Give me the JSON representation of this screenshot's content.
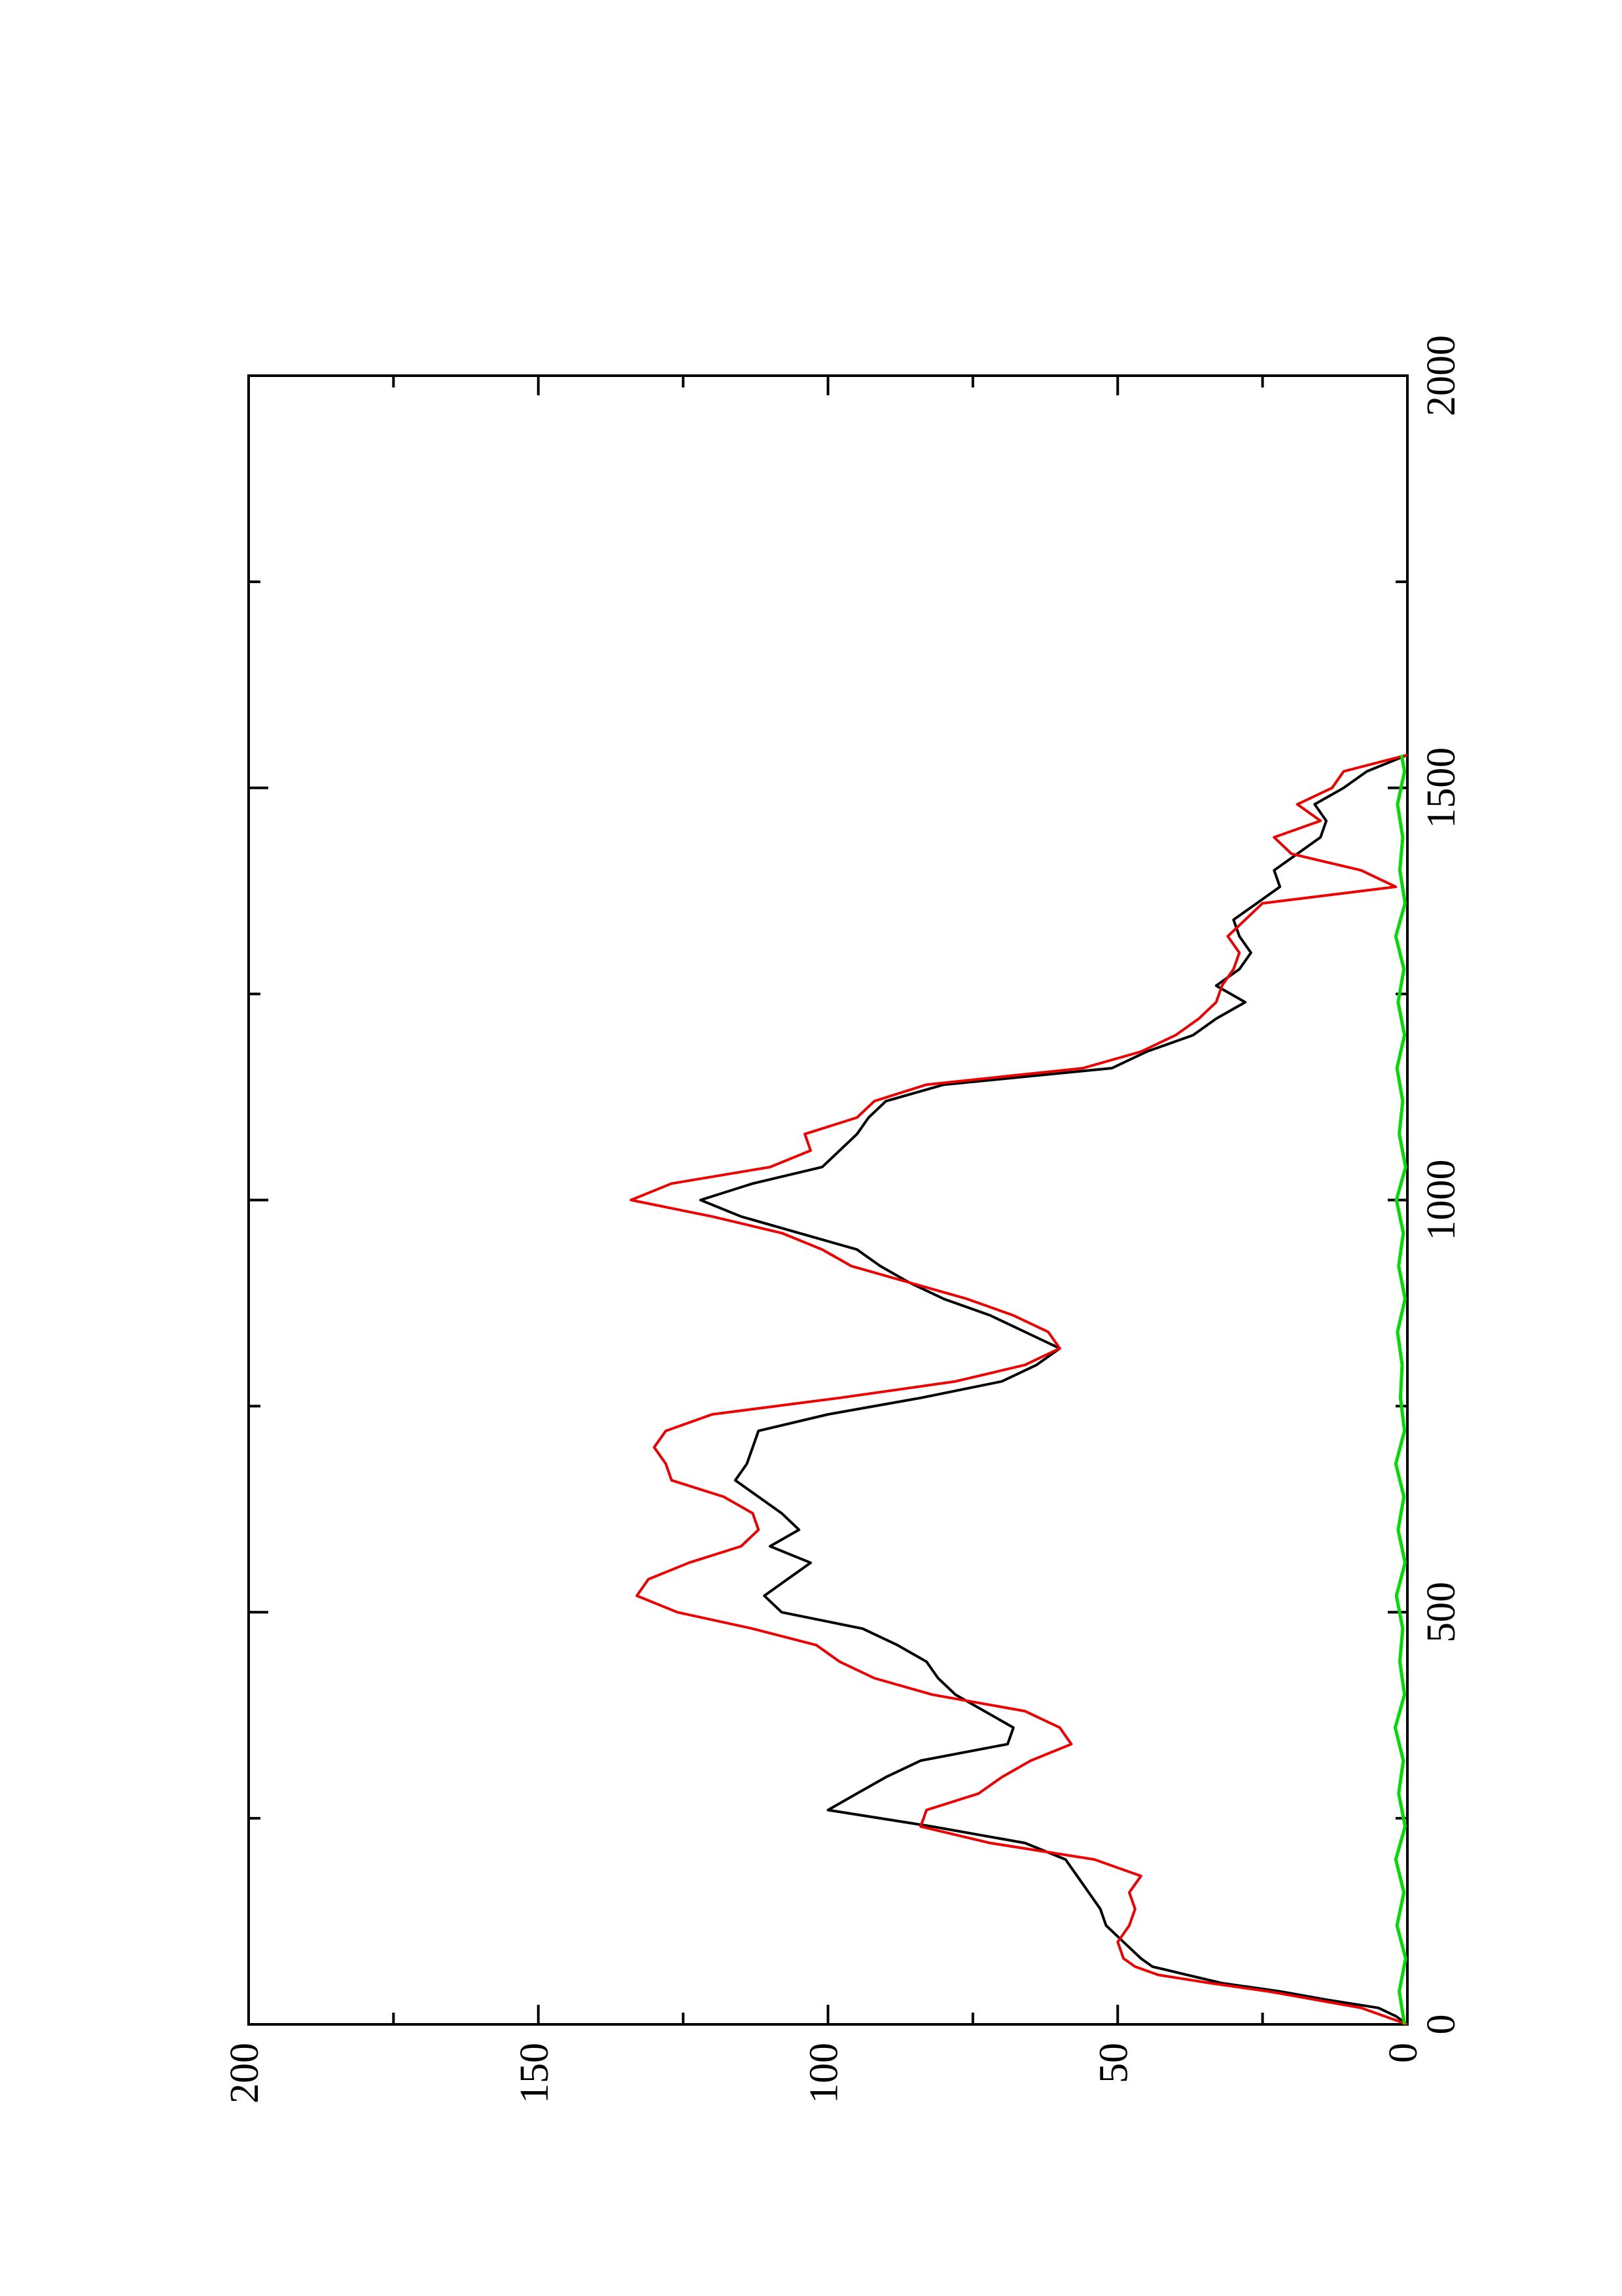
{
  "chart_data": {
    "type": "line",
    "orientation": "rotated-90-counterclockwise",
    "title": "",
    "xlabel": "",
    "ylabel": "",
    "xlim": [
      0,
      2000
    ],
    "ylim": [
      0,
      200
    ],
    "x_ticks": [
      0,
      500,
      1000,
      1500,
      2000
    ],
    "x_tick_labels": [
      "0",
      "500",
      "1000",
      "1500",
      "2000"
    ],
    "x_minor_ticks": [
      250,
      750,
      1250,
      1750
    ],
    "y_ticks": [
      0,
      50,
      100,
      150,
      200
    ],
    "y_tick_labels": [
      "0",
      "50",
      "100",
      "150",
      "200"
    ],
    "y_minor_ticks": [
      25,
      75,
      125,
      175
    ],
    "grid": false,
    "legend": "none",
    "series": [
      {
        "color": "#000000",
        "x": [
          0,
          10,
          20,
          30,
          40,
          50,
          60,
          70,
          80,
          100,
          120,
          140,
          160,
          180,
          200,
          220,
          240,
          260,
          280,
          300,
          320,
          340,
          360,
          380,
          400,
          420,
          440,
          460,
          480,
          500,
          520,
          540,
          560,
          580,
          600,
          620,
          640,
          660,
          680,
          700,
          720,
          740,
          760,
          780,
          800,
          820,
          840,
          860,
          880,
          900,
          920,
          940,
          960,
          980,
          1000,
          1020,
          1040,
          1060,
          1080,
          1100,
          1120,
          1140,
          1160,
          1180,
          1200,
          1220,
          1240,
          1260,
          1280,
          1300,
          1320,
          1340,
          1360,
          1380,
          1400,
          1420,
          1440,
          1460,
          1480,
          1500,
          1520,
          1540
        ],
        "y": [
          0,
          2,
          5,
          14,
          22,
          32,
          38,
          44,
          46,
          49,
          52,
          53,
          55,
          57,
          59,
          66,
          82,
          100,
          95,
          90,
          84,
          69,
          68,
          73,
          78,
          81,
          83,
          88,
          94,
          108,
          111,
          107,
          103,
          110,
          105,
          108,
          112,
          116,
          114,
          113,
          112,
          100,
          84,
          70,
          64,
          60,
          66,
          72,
          80,
          86,
          91,
          95,
          105,
          115,
          122,
          113,
          101,
          98,
          95,
          93,
          90,
          80,
          51,
          45,
          37,
          33,
          28,
          33,
          29,
          27,
          29,
          30,
          26,
          22,
          23,
          19,
          15,
          14,
          16,
          11,
          7,
          0
        ]
      },
      {
        "color": "#ee0000",
        "x": [
          0,
          10,
          20,
          30,
          40,
          50,
          60,
          70,
          80,
          100,
          120,
          140,
          160,
          180,
          200,
          220,
          240,
          260,
          280,
          300,
          320,
          340,
          360,
          380,
          400,
          420,
          440,
          460,
          480,
          500,
          520,
          540,
          560,
          580,
          600,
          620,
          640,
          660,
          680,
          700,
          720,
          740,
          760,
          780,
          800,
          820,
          840,
          860,
          880,
          900,
          920,
          940,
          960,
          980,
          1000,
          1020,
          1040,
          1060,
          1080,
          1100,
          1120,
          1140,
          1160,
          1180,
          1200,
          1220,
          1240,
          1260,
          1280,
          1300,
          1320,
          1340,
          1360,
          1380,
          1400,
          1420,
          1440,
          1460,
          1480,
          1500,
          1520,
          1540
        ],
        "y": [
          0,
          4,
          8,
          16,
          24,
          34,
          43,
          47,
          49,
          50,
          48,
          47,
          48,
          46,
          54,
          72,
          84,
          83,
          74,
          70,
          65,
          58,
          60,
          66,
          82,
          92,
          98,
          102,
          113,
          126,
          133,
          131,
          124,
          115,
          112,
          113,
          118,
          127,
          128,
          130,
          128,
          120,
          98,
          78,
          66,
          60,
          62,
          68,
          76,
          86,
          96,
          101,
          108,
          120,
          134,
          127,
          110,
          103,
          104,
          95,
          92,
          83,
          56,
          46,
          40,
          36,
          33,
          32,
          30,
          29,
          31,
          28,
          25,
          2,
          8,
          20,
          23,
          15,
          19,
          13,
          11,
          0
        ]
      },
      {
        "color": "#00dd00",
        "x": [
          0,
          40,
          80,
          120,
          160,
          200,
          240,
          280,
          320,
          360,
          400,
          440,
          480,
          520,
          560,
          600,
          640,
          680,
          720,
          760,
          800,
          840,
          880,
          920,
          960,
          1000,
          1040,
          1080,
          1120,
          1160,
          1200,
          1240,
          1280,
          1320,
          1360,
          1400,
          1440,
          1480,
          1520,
          1540
        ],
        "y": [
          0.5,
          1.4,
          0.3,
          1.8,
          0.6,
          2.0,
          0.4,
          1.5,
          0.7,
          2.1,
          0.5,
          1.3,
          0.8,
          1.9,
          0.4,
          1.6,
          0.6,
          2.0,
          0.5,
          1.2,
          0.9,
          1.7,
          0.4,
          1.5,
          0.7,
          1.9,
          0.3,
          1.4,
          0.8,
          1.8,
          0.5,
          1.6,
          0.6,
          2.0,
          0.4,
          1.3,
          0.8,
          1.7,
          0.5,
          1.0
        ]
      }
    ]
  }
}
